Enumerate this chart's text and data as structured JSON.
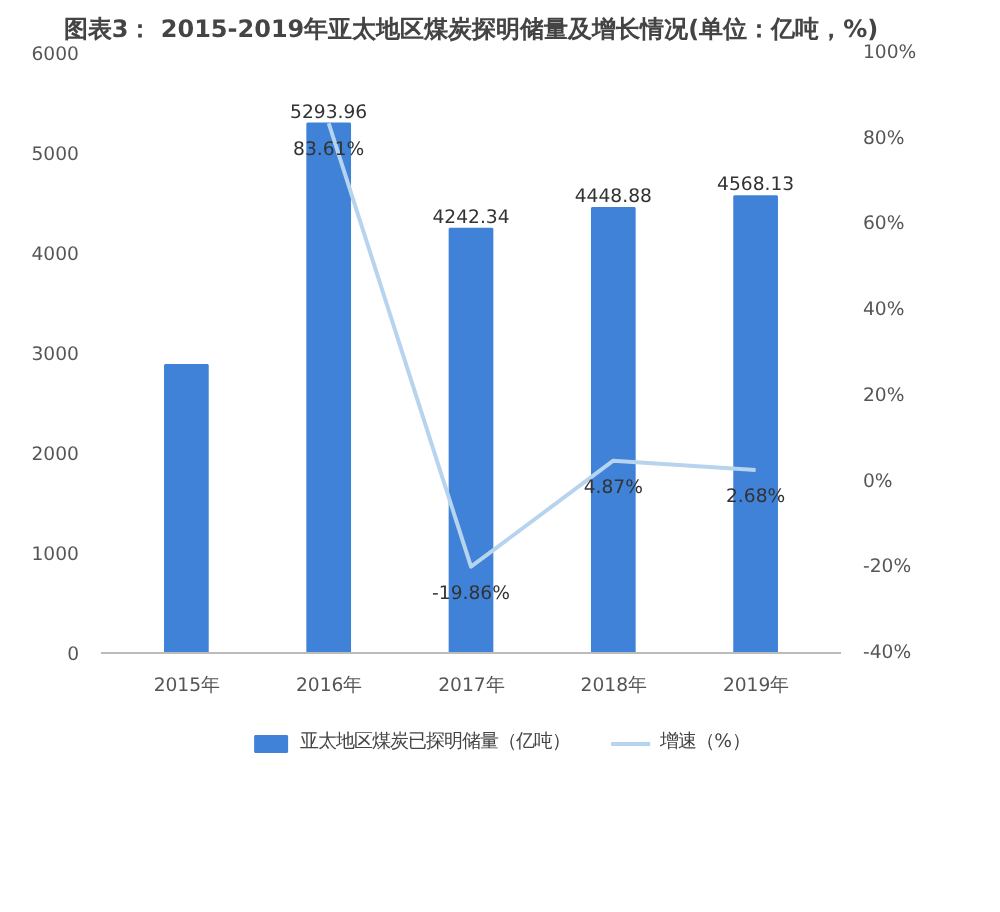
{
  "chart_data": {
    "type": "bar",
    "title": "图表3： 2015-2019年亚太地区煤炭探明储量及增长情况(单位：亿吨，%)",
    "categories": [
      "2015年",
      "2016年",
      "2017年",
      "2018年",
      "2019年"
    ],
    "series": [
      {
        "name": "亚太地区煤炭已探明储量（亿吨）",
        "color": "#3f82d8",
        "values": [
          2880,
          5293.96,
          4242.34,
          4448.88,
          4568.13
        ],
        "value_labels": [
          null,
          "5293.96",
          "4242.34",
          "4448.88",
          "4568.13"
        ]
      },
      {
        "name": "增速（%）",
        "type": "line",
        "axis": "y2",
        "color": "#b7d4ef",
        "values": [
          null,
          83.61,
          -19.86,
          4.87,
          2.68
        ],
        "value_labels": [
          null,
          "83.61%",
          "-19.86%",
          "4.87%",
          "2.68%"
        ]
      }
    ],
    "ylim": [
      0,
      6000
    ],
    "yticks": [
      0,
      1000,
      2000,
      3000,
      4000,
      5000,
      6000
    ],
    "y2lim": [
      -40,
      100
    ],
    "y2ticks": [
      {
        "value": -40,
        "label": "-40%"
      },
      {
        "value": -20,
        "label": "-20%"
      },
      {
        "value": 0,
        "label": "0%"
      },
      {
        "value": 20,
        "label": "20%"
      },
      {
        "value": 40,
        "label": "40%"
      },
      {
        "value": 60,
        "label": "60%"
      },
      {
        "value": 80,
        "label": "80%"
      },
      {
        "value": 100,
        "label": "100%"
      }
    ],
    "grid": false,
    "legend": "bottom"
  }
}
